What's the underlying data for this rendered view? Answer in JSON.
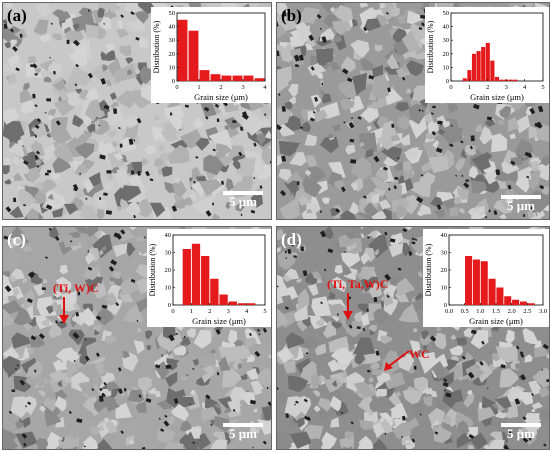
{
  "panels": [
    {
      "label": "(a)",
      "scale": "5 μm",
      "annotations": []
    },
    {
      "label": "(b)",
      "scale": "5 μm",
      "annotations": []
    },
    {
      "label": "(c)",
      "scale": "5 μm",
      "annotations": [
        "(Ti, W)C"
      ]
    },
    {
      "label": "(d)",
      "scale": "5 μm",
      "annotations": [
        "(Ti, Ta,W)C",
        "WC"
      ]
    }
  ],
  "inset_ylabel": "Distribution (%)",
  "inset_xlabel": "Grain size (μm)",
  "chart_data": [
    {
      "type": "bar",
      "panel": "(a)",
      "xlabel": "Grain size (μm)",
      "ylabel": "Distribution (%)",
      "xlim": [
        0,
        4
      ],
      "ylim": [
        0,
        50
      ],
      "x": [
        0.25,
        0.75,
        1.25,
        1.75,
        2.25,
        2.75,
        3.25,
        3.75
      ],
      "values": [
        45,
        37,
        8,
        5,
        4,
        4,
        4,
        2
      ],
      "xticks": [
        "0",
        "1",
        "2",
        "3",
        "4"
      ],
      "yticks": [
        "0",
        "10",
        "20",
        "30",
        "40",
        "50"
      ]
    },
    {
      "type": "bar",
      "panel": "(b)",
      "xlabel": "Grain size (μm)",
      "ylabel": "Distribution (%)",
      "xlim": [
        0,
        5
      ],
      "ylim": [
        0,
        50
      ],
      "x": [
        0.75,
        1.0,
        1.25,
        1.5,
        1.75,
        2.0,
        2.25,
        2.5,
        2.75,
        3.0,
        3.25,
        3.5
      ],
      "values": [
        2,
        8,
        20,
        22,
        25,
        28,
        15,
        3,
        1,
        1,
        1,
        1
      ],
      "xticks": [
        "0",
        "1",
        "2",
        "3",
        "4",
        "5"
      ],
      "yticks": [
        "0",
        "10",
        "20",
        "30",
        "40",
        "50"
      ]
    },
    {
      "type": "bar",
      "panel": "(c)",
      "xlabel": "Grain size (μm)",
      "ylabel": "Distribution (%)",
      "xlim": [
        0,
        5
      ],
      "ylim": [
        0,
        40
      ],
      "x": [
        0.75,
        1.25,
        1.75,
        2.25,
        2.75,
        3.25,
        3.75,
        4.25
      ],
      "values": [
        32,
        35,
        28,
        15,
        6,
        2,
        1,
        1
      ],
      "xticks": [
        "0",
        "1",
        "2",
        "3",
        "4",
        "5"
      ],
      "yticks": [
        "0",
        "10",
        "20",
        "30",
        "40"
      ]
    },
    {
      "type": "bar",
      "panel": "(d)",
      "xlabel": "Grain size (μm)",
      "ylabel": "Distribution (%)",
      "xlim": [
        0,
        3.0
      ],
      "ylim": [
        0,
        40
      ],
      "x": [
        0.625,
        0.875,
        1.125,
        1.375,
        1.625,
        1.875,
        2.125,
        2.375,
        2.625
      ],
      "values": [
        28,
        26,
        25,
        15,
        10,
        5,
        3,
        2,
        1
      ],
      "xticks": [
        "0.0",
        "0.5",
        "1.0",
        "1.5",
        "2.0",
        "2.5",
        "3.0"
      ],
      "yticks": [
        "0",
        "10",
        "20",
        "30",
        "40"
      ]
    }
  ]
}
